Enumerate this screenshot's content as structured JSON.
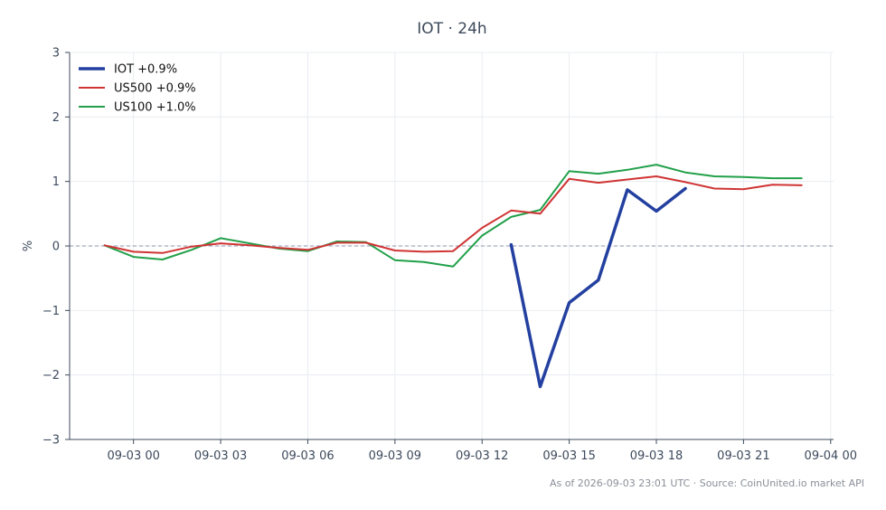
{
  "chart_data": {
    "type": "line",
    "title": "IOT · 24h",
    "xlabel": "",
    "ylabel": "%",
    "ylim": [
      -3,
      3
    ],
    "yticks": [
      3,
      2,
      1,
      0,
      -1,
      -2,
      -3
    ],
    "ytick_labels": [
      "3",
      "2",
      "1",
      "0",
      "−1",
      "−2",
      "−3"
    ],
    "xticks": [
      0,
      3,
      6,
      9,
      12,
      15,
      18,
      21,
      24
    ],
    "xtick_labels": [
      "09-03 00",
      "09-03 03",
      "09-03 06",
      "09-03 09",
      "09-03 12",
      "09-03 15",
      "09-03 18",
      "09-03 21",
      "09-04 00"
    ],
    "xlim": [
      -2.2,
      24.1
    ],
    "grid": true,
    "zero_line": true,
    "legend_position": "top-left",
    "series": [
      {
        "name": "IOT +0.9%",
        "color": "#2340a0",
        "x": [
          13,
          14,
          15,
          16,
          17,
          18,
          19
        ],
        "values": [
          0.02,
          -2.18,
          -0.88,
          -0.53,
          0.87,
          0.54,
          0.89
        ]
      },
      {
        "name": "US500 +0.9%",
        "color": "#d03434",
        "x": [
          -1,
          0,
          1,
          2,
          3,
          4,
          5,
          6,
          7,
          8,
          9,
          10,
          11,
          12,
          13,
          14,
          15,
          16,
          17,
          18,
          19,
          20,
          21,
          22,
          23
        ],
        "values": [
          0.01,
          -0.09,
          -0.11,
          -0.01,
          0.04,
          0.01,
          -0.03,
          -0.06,
          0.05,
          0.05,
          -0.07,
          -0.09,
          -0.08,
          0.28,
          0.55,
          0.5,
          1.04,
          0.98,
          1.03,
          1.08,
          0.99,
          0.89,
          0.88,
          0.95,
          0.94
        ]
      },
      {
        "name": "US100 +1.0%",
        "color": "#22a04a",
        "x": [
          -1,
          0,
          1,
          2,
          3,
          4,
          5,
          6,
          7,
          8,
          9,
          10,
          11,
          12,
          13,
          14,
          15,
          16,
          17,
          18,
          19,
          20,
          21,
          22,
          23
        ],
        "values": [
          0.01,
          -0.17,
          -0.21,
          -0.06,
          0.12,
          0.04,
          -0.04,
          -0.08,
          0.07,
          0.06,
          -0.22,
          -0.25,
          -0.32,
          0.16,
          0.45,
          0.56,
          1.16,
          1.12,
          1.18,
          1.26,
          1.14,
          1.08,
          1.07,
          1.05,
          1.05
        ]
      }
    ]
  },
  "footer": "As of 2026-09-03 23:01 UTC · Source: CoinUnited.io market API"
}
